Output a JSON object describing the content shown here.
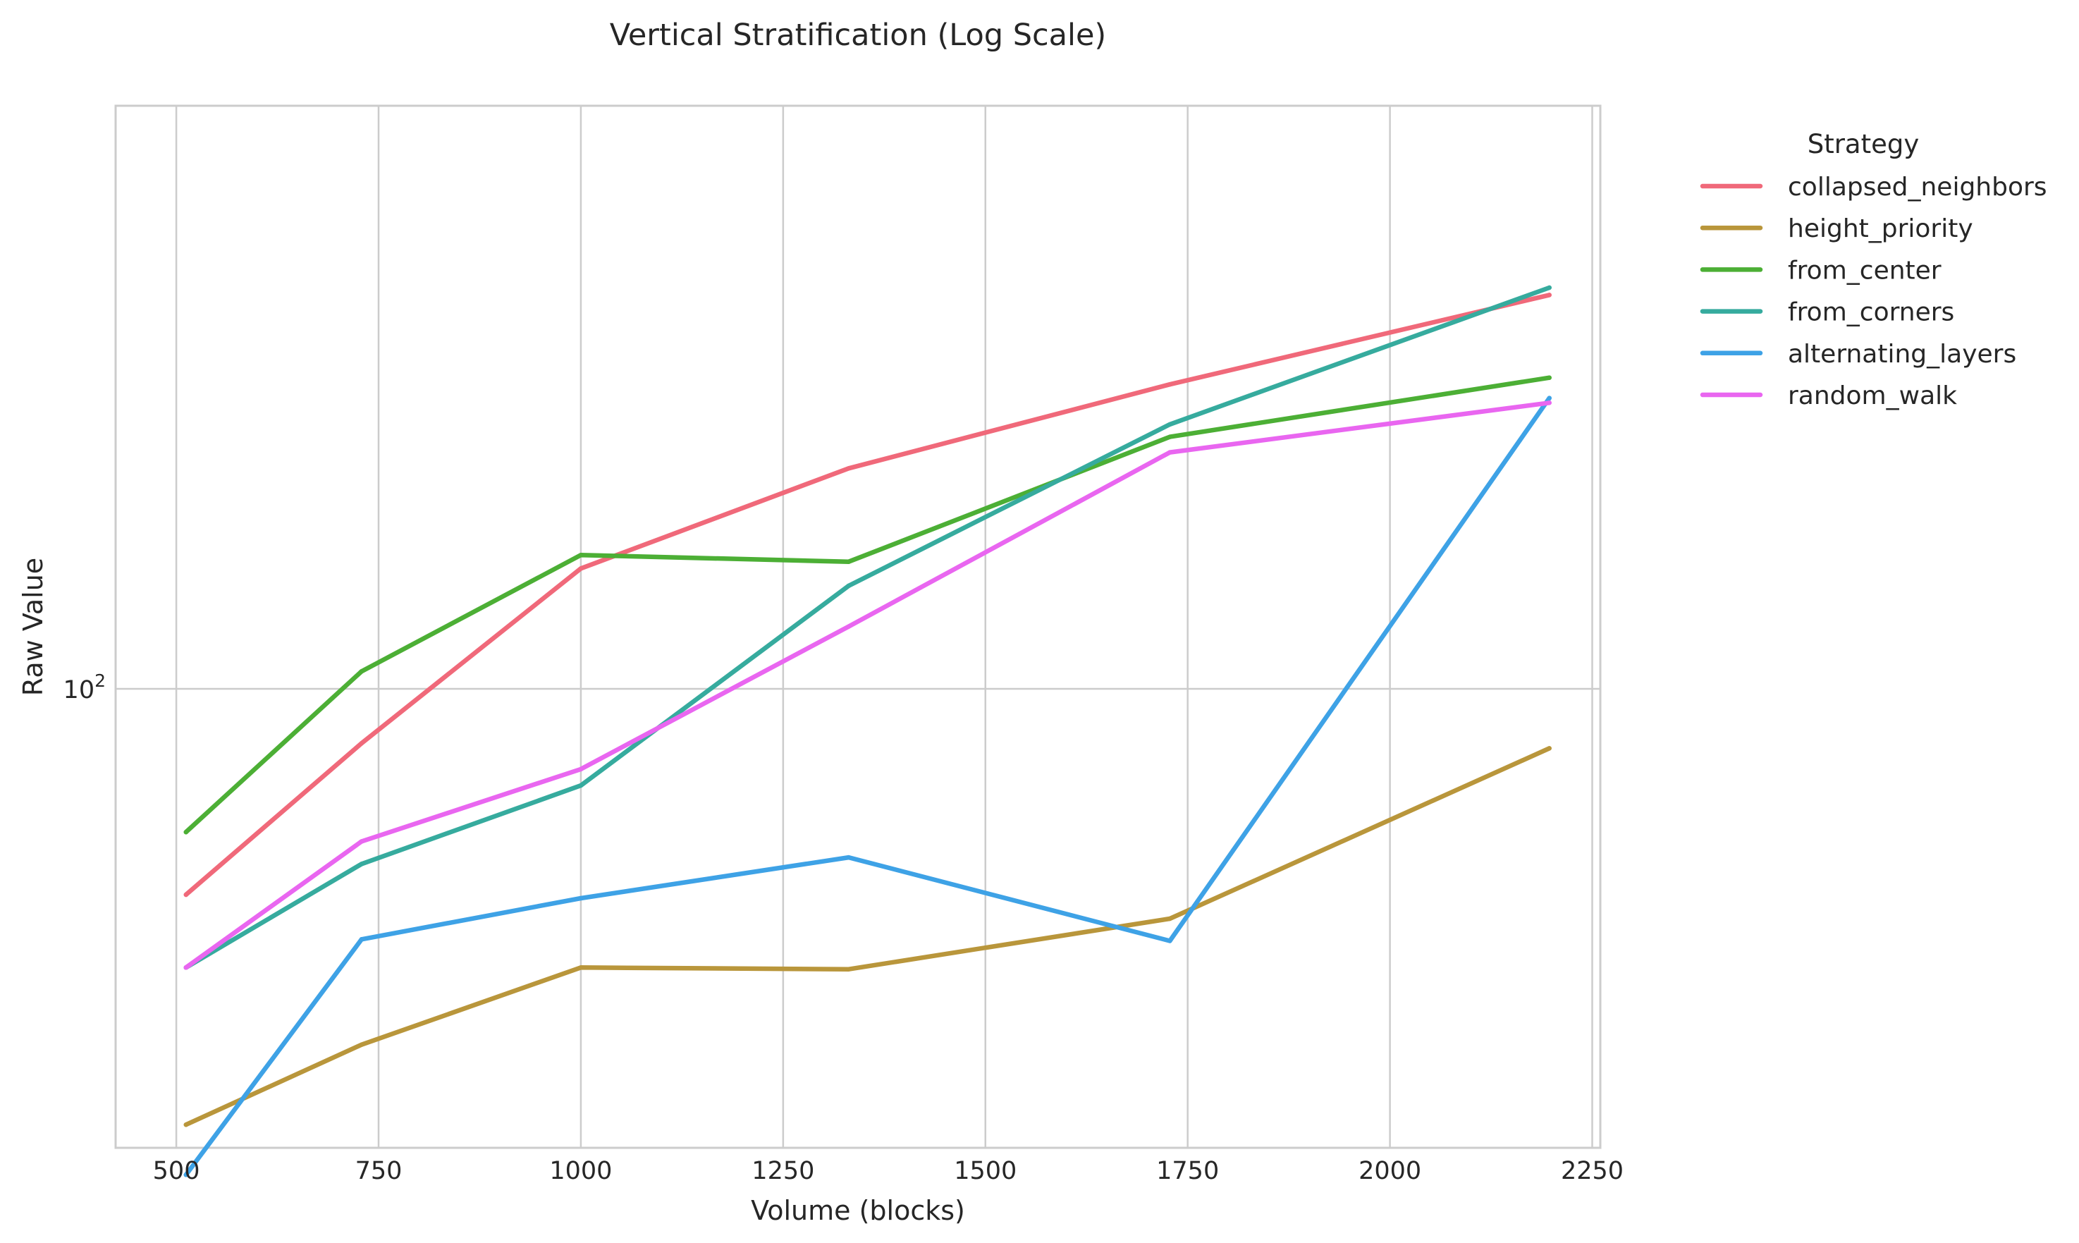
{
  "chart_data": {
    "type": "line",
    "title": "Vertical Stratification (Log Scale)",
    "xlabel": "Volume (blocks)",
    "ylabel": "Raw Value",
    "y_scale": "log",
    "xlim": [
      425,
      2260
    ],
    "ylim": [
      35.7,
      370
    ],
    "x_ticks": [
      500,
      750,
      1000,
      1250,
      1500,
      1750,
      2000,
      2250
    ],
    "x_tick_labels": [
      "500",
      "750",
      "1000",
      "1250",
      "1500",
      "1750",
      "2000",
      "2250"
    ],
    "y_ticks": [
      100
    ],
    "y_tick_labels": [
      {
        "base": "10",
        "exp": "2"
      }
    ],
    "grid": true,
    "legend": {
      "title": "Strategy",
      "placement": "outside-top-right"
    },
    "x": [
      512,
      729,
      1000,
      1331,
      1728,
      2197
    ],
    "series": [
      {
        "name": "collapsed_neighbors",
        "color": "#f0697a",
        "values": [
          63.0,
          88.5,
          131.0,
          164.0,
          198.0,
          242.0
        ]
      },
      {
        "name": "height_priority",
        "color": "#b9963b",
        "values": [
          37.6,
          45.0,
          53.5,
          53.3,
          59.7,
          87.5
        ]
      },
      {
        "name": "from_center",
        "color": "#4caf35",
        "values": [
          72.5,
          104.0,
          135.0,
          133.0,
          176.0,
          201.0
        ]
      },
      {
        "name": "from_corners",
        "color": "#36ab9e",
        "values": [
          53.5,
          67.5,
          80.5,
          126.0,
          181.0,
          246.0
        ]
      },
      {
        "name": "alternating_layers",
        "color": "#3ea2e6",
        "values": [
          33.6,
          57.0,
          62.5,
          68.5,
          56.8,
          192.0
        ]
      },
      {
        "name": "random_walk",
        "color": "#e966f0",
        "values": [
          53.5,
          71.0,
          83.5,
          115.0,
          170.0,
          190.0
        ]
      }
    ]
  }
}
